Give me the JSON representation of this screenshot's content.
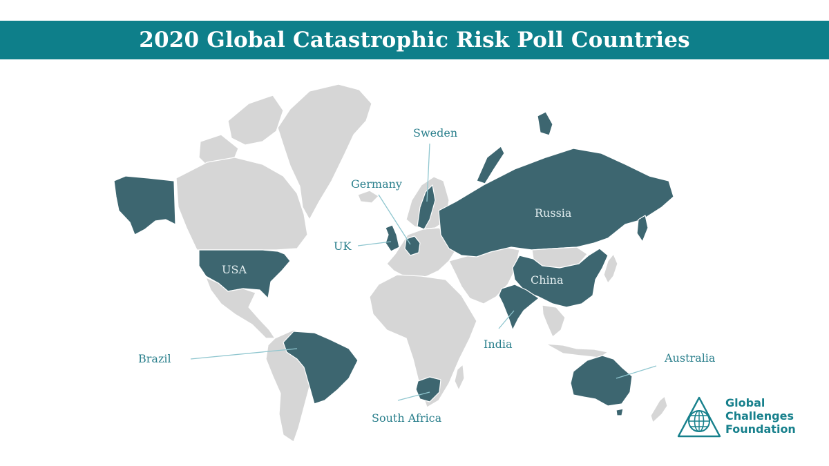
{
  "title": "2020 Global Catastrophic Risk Poll Countries",
  "colors": {
    "banner": "#0e7f8a",
    "land": "#d6d6d6",
    "poll_country": "#3d6670",
    "label": "#2a7f8c",
    "leader_line": "#8fc6cf"
  },
  "labels": {
    "sweden": "Sweden",
    "germany": "Germany",
    "uk": "UK",
    "usa": "USA",
    "russia": "Russia",
    "china": "China",
    "india": "India",
    "brazil": "Brazil",
    "south_africa": "South Africa",
    "australia": "Australia"
  },
  "logo": {
    "icon": "globe-triangle-icon",
    "line1": "Global",
    "line2": "Challenges",
    "line3": "Foundation"
  }
}
